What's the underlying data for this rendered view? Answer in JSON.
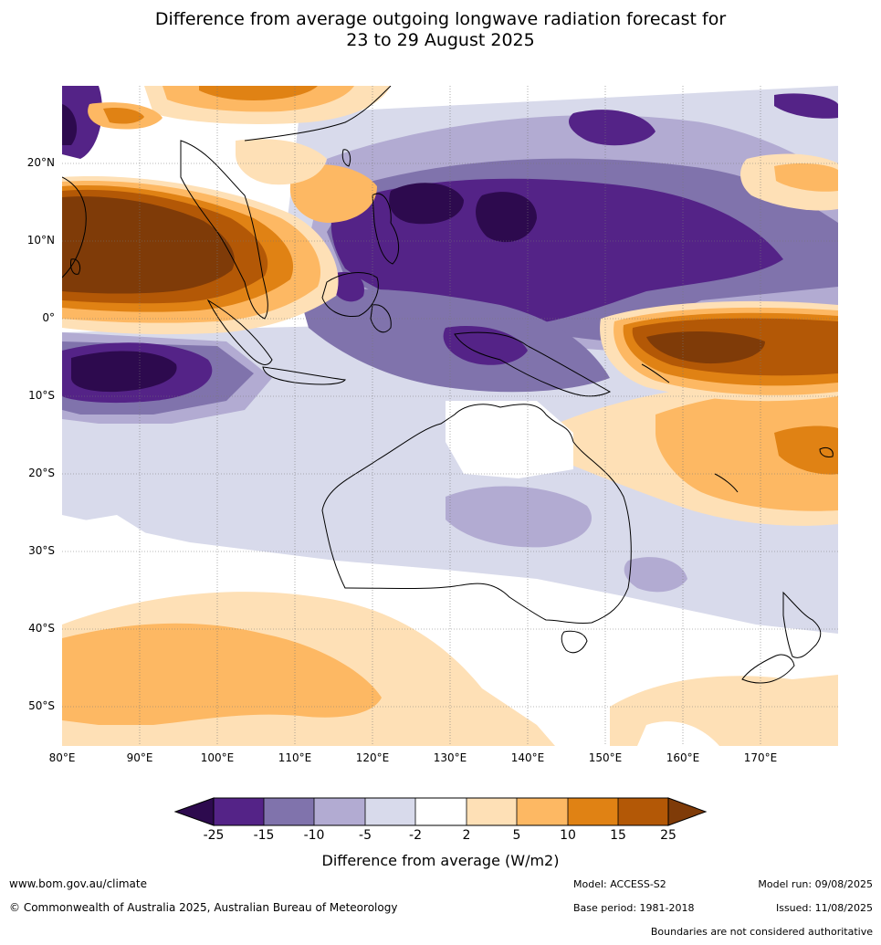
{
  "title": {
    "line1": "Difference from average outgoing longwave radiation forecast for",
    "line2": "23 to 29 August 2025"
  },
  "map": {
    "lon_range": [
      80,
      180
    ],
    "lat_range": [
      -55,
      30
    ],
    "lat_labels": [
      {
        "lat": 20,
        "label": "20°N"
      },
      {
        "lat": 10,
        "label": "10°N"
      },
      {
        "lat": 0,
        "label": "0°"
      },
      {
        "lat": -10,
        "label": "10°S"
      },
      {
        "lat": -20,
        "label": "20°S"
      },
      {
        "lat": -30,
        "label": "30°S"
      },
      {
        "lat": -40,
        "label": "40°S"
      },
      {
        "lat": -50,
        "label": "50°S"
      }
    ],
    "lon_labels": [
      {
        "lon": 80,
        "label": "80°E"
      },
      {
        "lon": 90,
        "label": "90°E"
      },
      {
        "lon": 100,
        "label": "100°E"
      },
      {
        "lon": 110,
        "label": "110°E"
      },
      {
        "lon": 120,
        "label": "120°E"
      },
      {
        "lon": 130,
        "label": "130°E"
      },
      {
        "lon": 140,
        "label": "140°E"
      },
      {
        "lon": 150,
        "label": "150°E"
      },
      {
        "lon": 160,
        "label": "160°E"
      },
      {
        "lon": 170,
        "label": "170°E"
      }
    ]
  },
  "colorbar": {
    "label": "Difference from average (W/m2)",
    "ticks": [
      "-25",
      "-15",
      "-10",
      "-5",
      "-2",
      "2",
      "5",
      "10",
      "15",
      "25"
    ],
    "colors": {
      "below_-25": "#2d0a4e",
      "-25_-15": "#542387",
      "-15_-10": "#8073ac",
      "-10_-5": "#b2abd2",
      "-5_-2": "#d8daeb",
      "-2_2": "#ffffff",
      "2_5": "#fee0b6",
      "5_10": "#fdb863",
      "10_15": "#e08214",
      "15_25": "#b35806",
      "above_25": "#7f3b08"
    }
  },
  "footer": {
    "website": "www.bom.gov.au/climate",
    "copyright": "© Commonwealth of Australia 2025, Australian Bureau of Meteorology",
    "model": "Model: ACCESS-S2",
    "base_period": "Base period: 1981-2018",
    "model_run": "Model run: 09/08/2025",
    "issued": "Issued: 11/08/2025",
    "disclaimer": "Boundaries are not considered authoritative"
  }
}
